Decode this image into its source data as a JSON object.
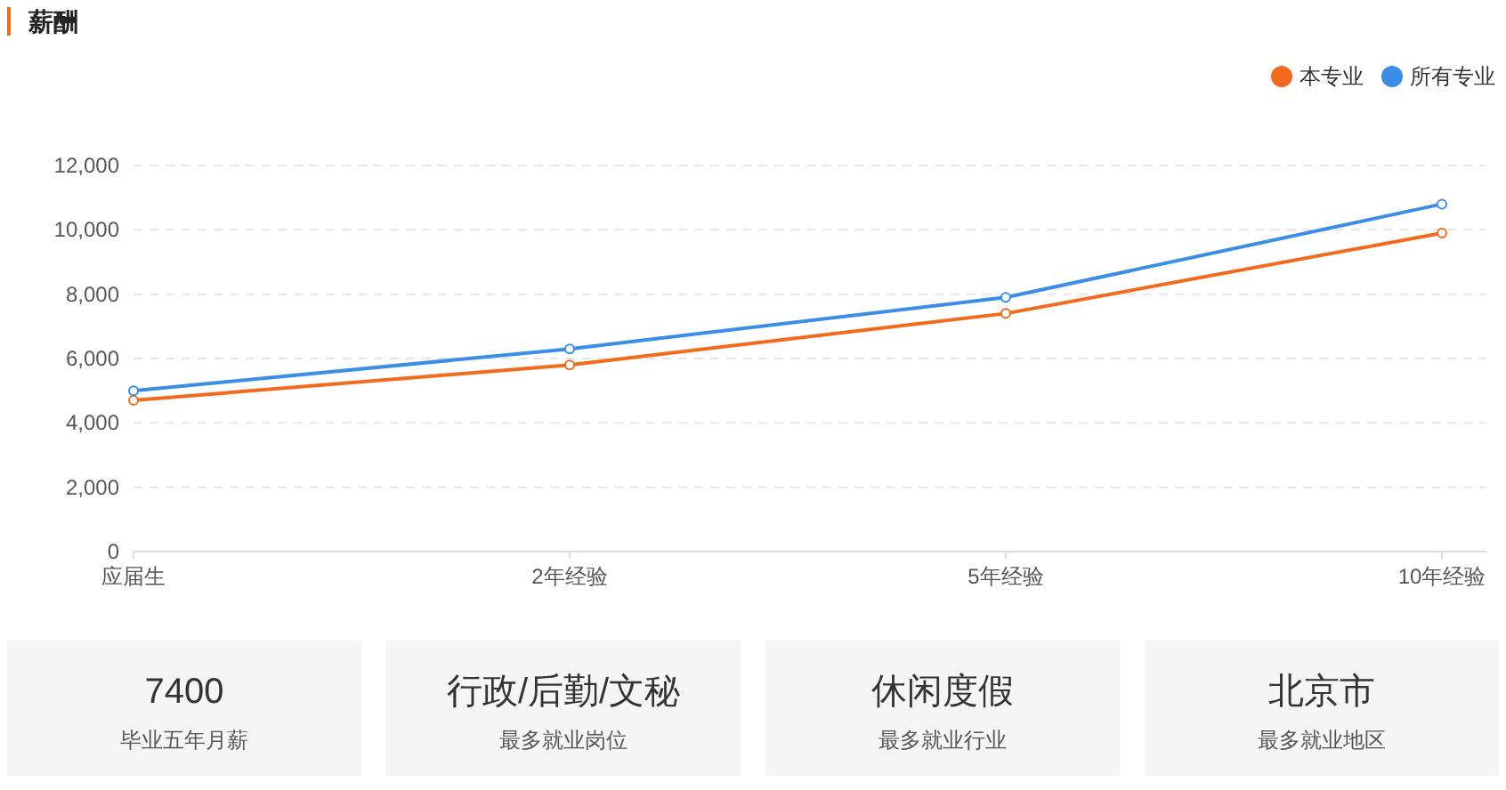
{
  "chart_data": [
    {
      "type": "line",
      "title": "薪酬",
      "categories": [
        "应届生",
        "2年经验",
        "5年经验",
        "10年经验"
      ],
      "series": [
        {
          "name": "本专业",
          "color": "#f26b1d",
          "values": [
            4700,
            5800,
            7400,
            9900
          ]
        },
        {
          "name": "所有专业",
          "color": "#3a8ee6",
          "values": [
            5000,
            6300,
            7900,
            10800
          ]
        }
      ],
      "ylim": [
        0,
        12000
      ],
      "yticks": [
        {
          "value": 0,
          "label": "0"
        },
        {
          "value": 2000,
          "label": "2,000"
        },
        {
          "value": 4000,
          "label": "4,000"
        },
        {
          "value": 6000,
          "label": "6,000"
        },
        {
          "value": 8000,
          "label": "8,000"
        },
        {
          "value": 10000,
          "label": "10,000"
        },
        {
          "value": 12000,
          "label": "12,000"
        }
      ],
      "grid": "y",
      "legend": "top right",
      "marker": "circle"
    },
    {
      "type": "other",
      "annotations": [
        "7400",
        "毕业五年月薪",
        "行政/后勤/文秘",
        "最多就业岗位",
        "休闲度假",
        "最多就业行业",
        "北京市",
        "最多就业地区"
      ]
    }
  ]
}
